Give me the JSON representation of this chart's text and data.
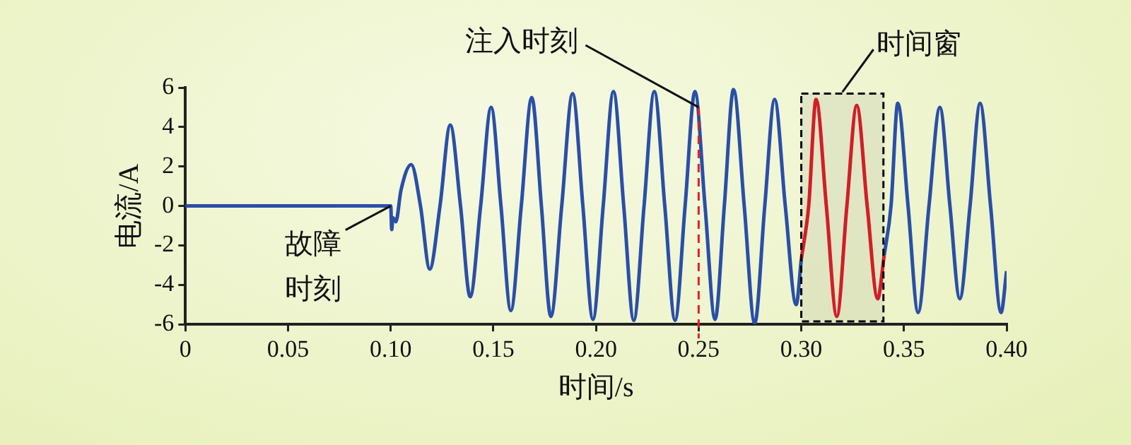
{
  "chart_data": {
    "type": "line",
    "xlabel": "时间/s",
    "ylabel": "电流/A",
    "xlim": [
      0,
      0.4
    ],
    "ylim": [
      -6,
      6
    ],
    "xticks": [
      0,
      0.05,
      {
        "value": 0.1,
        "label": "0.10"
      },
      0.15,
      {
        "value": 0.2,
        "label": "0.20"
      },
      0.25,
      {
        "value": 0.3,
        "label": "0.30"
      },
      0.35,
      {
        "value": 0.4,
        "label": "0.40"
      }
    ],
    "yticks": [
      -6,
      -4,
      -2,
      0,
      2,
      4,
      6
    ],
    "grid": false,
    "legend": false,
    "marker": "none",
    "line_style": "solid",
    "series": [
      {
        "color": "#2a4fa8",
        "x": [
          0,
          0.1,
          0.1005,
          0.101,
          0.1025,
          0.105,
          0.11,
          0.1145,
          0.119,
          0.124,
          0.129,
          0.134,
          0.1387,
          0.1438,
          0.1489,
          0.1537,
          0.1585,
          0.1636,
          0.1687,
          0.1734,
          0.178,
          0.1833,
          0.1886,
          0.1936,
          0.1985,
          0.2035,
          0.2085,
          0.2135,
          0.2184,
          0.2234,
          0.2284,
          0.2335,
          0.2385,
          0.2434,
          0.2482,
          0.2531,
          0.258,
          0.2625,
          0.267,
          0.2722,
          0.2773,
          0.2822,
          0.287,
          0.2922,
          0.2975,
          0.3,
          0.32,
          0.3404,
          0.3437,
          0.347,
          0.352,
          0.3569,
          0.3622,
          0.3675,
          0.3724,
          0.3772,
          0.3822,
          0.3871,
          0.3922,
          0.3973,
          0.4
        ],
        "values": [
          0,
          0,
          -1.2,
          -0.6,
          -0.8,
          0.8,
          2.1,
          0,
          -3.2,
          0,
          4.1,
          0,
          -4.6,
          0,
          5.0,
          0,
          -5.3,
          0,
          5.5,
          0,
          -5.6,
          0,
          5.7,
          0,
          -5.75,
          0,
          5.8,
          0,
          -5.8,
          0,
          5.8,
          0,
          -5.8,
          0,
          5.8,
          0,
          -5.75,
          0,
          5.9,
          0,
          -5.95,
          0,
          5.4,
          0,
          -5.0,
          -2.7,
          null,
          -2.5,
          0,
          5.2,
          0,
          -5.4,
          0,
          5.0,
          0,
          -4.7,
          0,
          5.2,
          0,
          -5.4,
          -3.3
        ]
      },
      {
        "color": "#e0202a",
        "x": [
          0.3,
          0.3036,
          0.3072,
          0.3122,
          0.3173,
          0.3222,
          0.327,
          0.3321,
          0.3372,
          0.3404
        ],
        "values": [
          -2.7,
          0,
          5.4,
          0,
          -5.6,
          0,
          5.1,
          0,
          -4.7,
          -2.5
        ]
      }
    ],
    "ref_lines": [
      {
        "axis": "x",
        "value": 0.25,
        "label": "注入时刻",
        "color": "#e0202a",
        "line_style": "dashed"
      }
    ],
    "bands": [
      {
        "axis": "x",
        "from": 0.3,
        "to": 0.34,
        "label": "时间窗",
        "color": "#000000"
      }
    ],
    "annotations": [
      {
        "text": "故障时刻",
        "x": 0.1,
        "y": 0
      }
    ]
  }
}
